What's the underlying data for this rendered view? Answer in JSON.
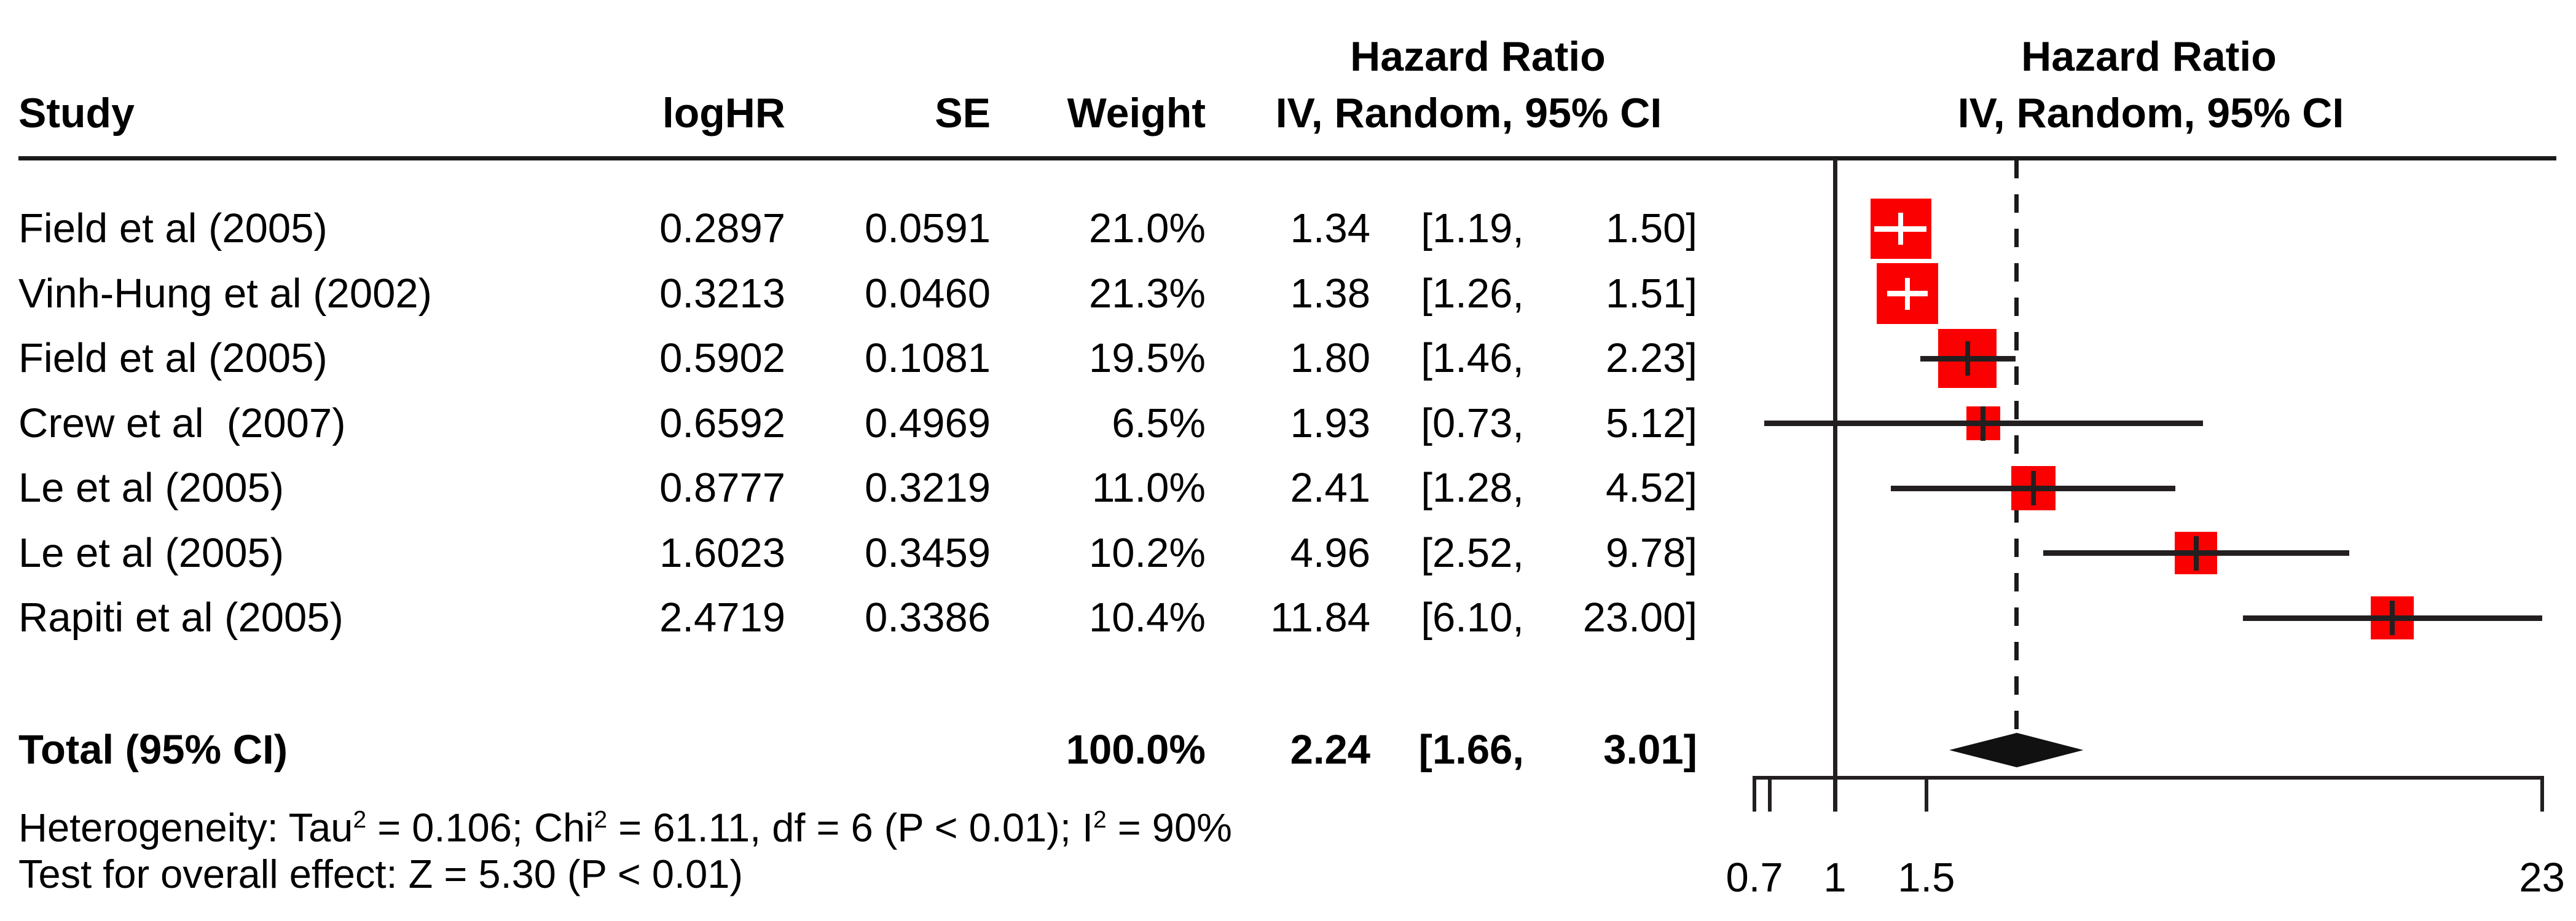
{
  "headers": {
    "study": "Study",
    "loghr": "logHR",
    "se": "SE",
    "weight": "Weight",
    "hr_left_line1": "Hazard Ratio",
    "hr_left_line2": "IV, Random, 95% CI",
    "hr_right_line1": "Hazard Ratio",
    "hr_right_line2": "IV, Random, 95% CI"
  },
  "colors": {
    "square_red": "#fb0000",
    "line_black": "#231f20",
    "diamond_black": "#111111",
    "white": "#ffffff"
  },
  "chart_data": {
    "type": "forest",
    "x_scale": "log",
    "effect_model": "IV, Random, 95% CI",
    "axis": {
      "xlim": [
        0.7,
        23
      ],
      "ticks": [
        {
          "value": 0.7,
          "label": "0.7"
        },
        {
          "value": 1,
          "label": "1"
        },
        {
          "value": 1.5,
          "label": "1.5"
        },
        {
          "value": 23,
          "label": "23"
        }
      ],
      "minor_ticks": [
        0.75
      ],
      "reference_line": 1,
      "overall_dashed_line": 2.24
    },
    "studies": [
      {
        "name": "Field et al (2005)",
        "loghr": "0.2897",
        "se": "0.0591",
        "weight_pct": 21.0,
        "weight": "21.0%",
        "hr": 1.34,
        "lo": 1.19,
        "hi": 1.5,
        "est": "1.34",
        "ci_lo": "[1.19,",
        "ci_hi": "1.50]"
      },
      {
        "name": "Vinh-Hung et al (2002)",
        "loghr": "0.3213",
        "se": "0.0460",
        "weight_pct": 21.3,
        "weight": "21.3%",
        "hr": 1.38,
        "lo": 1.26,
        "hi": 1.51,
        "est": "1.38",
        "ci_lo": "[1.26,",
        "ci_hi": "1.51]"
      },
      {
        "name": "Field et al (2005)",
        "loghr": "0.5902",
        "se": "0.1081",
        "weight_pct": 19.5,
        "weight": "19.5%",
        "hr": 1.8,
        "lo": 1.46,
        "hi": 2.23,
        "est": "1.80",
        "ci_lo": "[1.46,",
        "ci_hi": "2.23]"
      },
      {
        "name": "Crew et al  (2007)",
        "loghr": "0.6592",
        "se": "0.4969",
        "weight_pct": 6.5,
        "weight": "6.5%",
        "hr": 1.93,
        "lo": 0.73,
        "hi": 5.12,
        "est": "1.93",
        "ci_lo": "[0.73,",
        "ci_hi": "5.12]"
      },
      {
        "name": "Le et al (2005)",
        "loghr": "0.8777",
        "se": "0.3219",
        "weight_pct": 11.0,
        "weight": "11.0%",
        "hr": 2.41,
        "lo": 1.28,
        "hi": 4.52,
        "est": "2.41",
        "ci_lo": "[1.28,",
        "ci_hi": "4.52]"
      },
      {
        "name": "Le et al (2005)",
        "loghr": "1.6023",
        "se": "0.3459",
        "weight_pct": 10.2,
        "weight": "10.2%",
        "hr": 4.96,
        "lo": 2.52,
        "hi": 9.78,
        "est": "4.96",
        "ci_lo": "[2.52,",
        "ci_hi": "9.78]"
      },
      {
        "name": "Rapiti et al (2005)",
        "loghr": "2.4719",
        "se": "0.3386",
        "weight_pct": 10.4,
        "weight": "10.4%",
        "hr": 11.84,
        "lo": 6.1,
        "hi": 23.0,
        "est": "11.84",
        "ci_lo": "[6.10,",
        "ci_hi": "23.00]"
      }
    ],
    "total": {
      "label": "Total (95% CI)",
      "weight": "100.0%",
      "hr": 2.24,
      "lo": 1.66,
      "hi": 3.01,
      "est": "2.24",
      "ci_lo": "[1.66,",
      "ci_hi": "3.01]"
    },
    "heterogeneity_parts": [
      {
        "t": "Heterogeneity: Tau"
      },
      {
        "sup": "2"
      },
      {
        "t": " = 0.106; Chi"
      },
      {
        "sup": "2"
      },
      {
        "t": " = 61.11, df = 6 (P < 0.01); I"
      },
      {
        "sup": "2"
      },
      {
        "t": " = 90%"
      }
    ],
    "overall_effect_parts": [
      {
        "t": "Test for overall effect: Z = 5.30 (P < 0.01)"
      }
    ]
  }
}
